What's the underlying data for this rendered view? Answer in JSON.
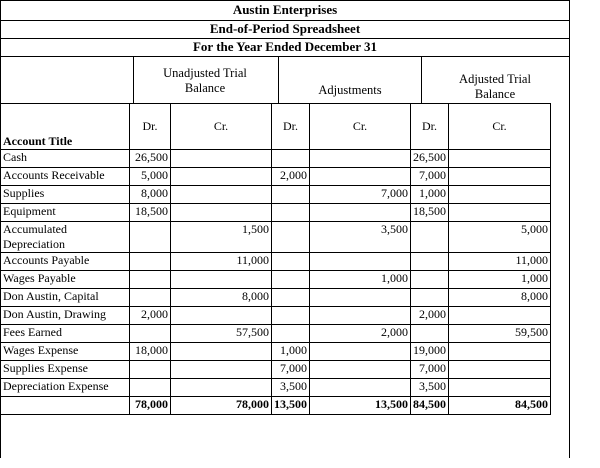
{
  "header": {
    "company": "Austin Enterprises",
    "report": "End-of-Period Spreadsheet",
    "period": "For the Year Ended December 31"
  },
  "groups": {
    "unadjusted": "Unadjusted Trial Balance",
    "adjustments": "Adjustments",
    "adjusted": "Adjusted Trial Balance"
  },
  "columns": {
    "account": "Account Title",
    "dr": "Dr.",
    "cr": "Cr."
  },
  "rows": [
    {
      "account": "Cash",
      "ud": "26,500",
      "uc": "",
      "ad": "",
      "ac": "",
      "tb_d": "26,500",
      "tb_c": ""
    },
    {
      "account": "Accounts Receivable",
      "ud": "5,000",
      "uc": "",
      "ad": "2,000",
      "ac": "",
      "tb_d": "7,000",
      "tb_c": ""
    },
    {
      "account": "Supplies",
      "ud": "8,000",
      "uc": "",
      "ad": "",
      "ac": "7,000",
      "tb_d": "1,000",
      "tb_c": ""
    },
    {
      "account": "Equipment",
      "ud": "18,500",
      "uc": "",
      "ad": "",
      "ac": "",
      "tb_d": "18,500",
      "tb_c": ""
    },
    {
      "account": "Accumulated Depreciation",
      "ud": "",
      "uc": "1,500",
      "ad": "",
      "ac": "3,500",
      "tb_d": "",
      "tb_c": "5,000"
    },
    {
      "account": "Accounts Payable",
      "ud": "",
      "uc": "11,000",
      "ad": "",
      "ac": "",
      "tb_d": "",
      "tb_c": "11,000"
    },
    {
      "account": "Wages Payable",
      "ud": "",
      "uc": "",
      "ad": "",
      "ac": "1,000",
      "tb_d": "",
      "tb_c": "1,000"
    },
    {
      "account": "Don Austin, Capital",
      "ud": "",
      "uc": "8,000",
      "ad": "",
      "ac": "",
      "tb_d": "",
      "tb_c": "8,000"
    },
    {
      "account": "Don Austin, Drawing",
      "ud": "2,000",
      "uc": "",
      "ad": "",
      "ac": "",
      "tb_d": "2,000",
      "tb_c": ""
    },
    {
      "account": "Fees Earned",
      "ud": "",
      "uc": "57,500",
      "ad": "",
      "ac": "2,000",
      "tb_d": "",
      "tb_c": "59,500"
    },
    {
      "account": "Wages Expense",
      "ud": "18,000",
      "uc": "",
      "ad": "1,000",
      "ac": "",
      "tb_d": "19,000",
      "tb_c": ""
    },
    {
      "account": "Supplies Expense",
      "ud": "",
      "uc": "",
      "ad": "7,000",
      "ac": "",
      "tb_d": "7,000",
      "tb_c": ""
    },
    {
      "account": "Depreciation Expense",
      "ud": "",
      "uc": "",
      "ad": "3,500",
      "ac": "",
      "tb_d": "3,500",
      "tb_c": ""
    }
  ],
  "totals": {
    "ud": "78,000",
    "uc": "78,000",
    "ad": "13,500",
    "ac": "13,500",
    "tb_d": "84,500",
    "tb_c": "84,500"
  }
}
